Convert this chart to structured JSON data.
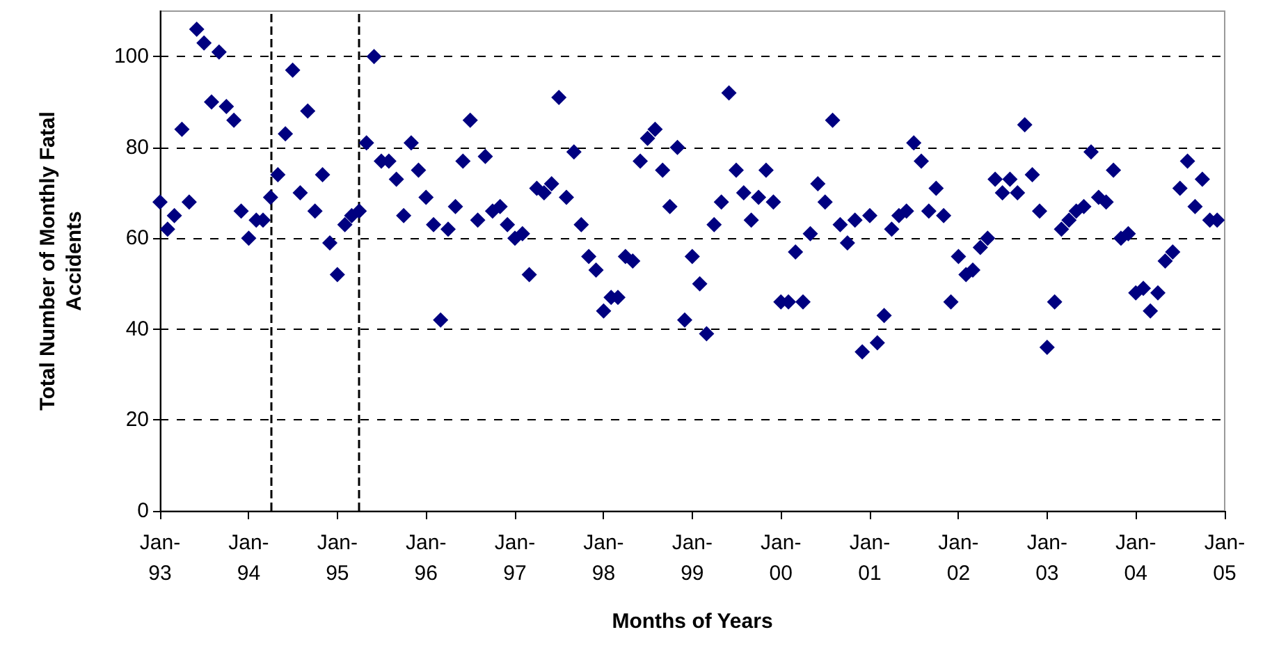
{
  "chart_data": {
    "type": "scatter",
    "xlabel": "Months of Years",
    "ylabel": "Total Number of Monthly Fatal Accidents",
    "x": [
      "1993-01",
      "1993-02",
      "1993-03",
      "1993-04",
      "1993-05",
      "1993-06",
      "1993-07",
      "1993-08",
      "1993-09",
      "1993-10",
      "1993-11",
      "1993-12",
      "1994-01",
      "1994-02",
      "1994-03",
      "1994-04",
      "1994-05",
      "1994-06",
      "1994-07",
      "1994-08",
      "1994-09",
      "1994-10",
      "1994-11",
      "1994-12",
      "1995-01",
      "1995-02",
      "1995-03",
      "1995-04",
      "1995-05",
      "1995-06",
      "1995-07",
      "1995-08",
      "1995-09",
      "1995-10",
      "1995-11",
      "1995-12",
      "1996-01",
      "1996-02",
      "1996-03",
      "1996-04",
      "1996-05",
      "1996-06",
      "1996-07",
      "1996-08",
      "1996-09",
      "1996-10",
      "1996-11",
      "1996-12",
      "1997-01",
      "1997-02",
      "1997-03",
      "1997-04",
      "1997-05",
      "1997-06",
      "1997-07",
      "1997-08",
      "1997-09",
      "1997-10",
      "1997-11",
      "1997-12",
      "1998-01",
      "1998-02",
      "1998-03",
      "1998-04",
      "1998-05",
      "1998-06",
      "1998-07",
      "1998-08",
      "1998-09",
      "1998-10",
      "1998-11",
      "1998-12",
      "1999-01",
      "1999-02",
      "1999-03",
      "1999-04",
      "1999-05",
      "1999-06",
      "1999-07",
      "1999-08",
      "1999-09",
      "1999-10",
      "1999-11",
      "1999-12",
      "2000-01",
      "2000-02",
      "2000-03",
      "2000-04",
      "2000-05",
      "2000-06",
      "2000-07",
      "2000-08",
      "2000-09",
      "2000-10",
      "2000-11",
      "2000-12",
      "2001-01",
      "2001-02",
      "2001-03",
      "2001-04",
      "2001-05",
      "2001-06",
      "2001-07",
      "2001-08",
      "2001-09",
      "2001-10",
      "2001-11",
      "2001-12",
      "2002-01",
      "2002-02",
      "2002-03",
      "2002-04",
      "2002-05",
      "2002-06",
      "2002-07",
      "2002-08",
      "2002-09",
      "2002-10",
      "2002-11",
      "2002-12",
      "2003-01",
      "2003-02",
      "2003-03",
      "2003-04",
      "2003-05",
      "2003-06",
      "2003-07",
      "2003-08",
      "2003-09",
      "2003-10",
      "2003-11",
      "2003-12",
      "2004-01",
      "2004-02",
      "2004-03",
      "2004-04",
      "2004-05",
      "2004-06",
      "2004-07",
      "2004-08",
      "2004-09",
      "2004-10",
      "2004-11",
      "2004-12"
    ],
    "series": [
      {
        "color": "#000080",
        "values": [
          68,
          62,
          65,
          84,
          68,
          106,
          103,
          90,
          101,
          89,
          86,
          66,
          60,
          64,
          64,
          69,
          74,
          83,
          97,
          70,
          88,
          66,
          74,
          59,
          52,
          63,
          65,
          66,
          81,
          100,
          77,
          77,
          73,
          65,
          81,
          75,
          69,
          63,
          42,
          62,
          67,
          77,
          86,
          64,
          78,
          66,
          67,
          63,
          60,
          61,
          52,
          71,
          70,
          72,
          91,
          69,
          79,
          63,
          56,
          53,
          44,
          47,
          47,
          56,
          55,
          77,
          82,
          84,
          75,
          67,
          80,
          42,
          56,
          50,
          39,
          63,
          68,
          92,
          75,
          70,
          64,
          69,
          75,
          68,
          46,
          46,
          57,
          46,
          61,
          72,
          68,
          86,
          63,
          59,
          64,
          35,
          65,
          37,
          43,
          62,
          65,
          66,
          81,
          77,
          66,
          71,
          65,
          46,
          56,
          52,
          53,
          58,
          60,
          73,
          70,
          73,
          70,
          85,
          74,
          66,
          36,
          46,
          62,
          64,
          66,
          67,
          79,
          69,
          68,
          75,
          60,
          61,
          48,
          49,
          44,
          48,
          55,
          57,
          71,
          77,
          67,
          73,
          64,
          64
        ]
      }
    ],
    "xlim": [
      "1993-01",
      "2005-01"
    ],
    "xticks": [
      {
        "value": "1993-01",
        "label": "Jan-93"
      },
      {
        "value": "1994-01",
        "label": "Jan-94"
      },
      {
        "value": "1995-01",
        "label": "Jan-95"
      },
      {
        "value": "1996-01",
        "label": "Jan-96"
      },
      {
        "value": "1997-01",
        "label": "Jan-97"
      },
      {
        "value": "1998-01",
        "label": "Jan-98"
      },
      {
        "value": "1999-01",
        "label": "Jan-99"
      },
      {
        "value": "2000-01",
        "label": "Jan-00"
      },
      {
        "value": "2001-01",
        "label": "Jan-01"
      },
      {
        "value": "2002-01",
        "label": "Jan-02"
      },
      {
        "value": "2003-01",
        "label": "Jan-03"
      },
      {
        "value": "2004-01",
        "label": "Jan-04"
      },
      {
        "value": "2005-01",
        "label": "Jan-05"
      }
    ],
    "ylim": [
      0,
      110
    ],
    "yticks": [
      0,
      20,
      40,
      60,
      80,
      100
    ],
    "ref_lines": [
      {
        "axis": "x",
        "value": "1994-04",
        "line_style": "dashed",
        "color": "#000000"
      },
      {
        "axis": "x",
        "value": "1995-04",
        "line_style": "dashed",
        "color": "#000000"
      }
    ],
    "grid": "y",
    "marker": "diamond"
  }
}
